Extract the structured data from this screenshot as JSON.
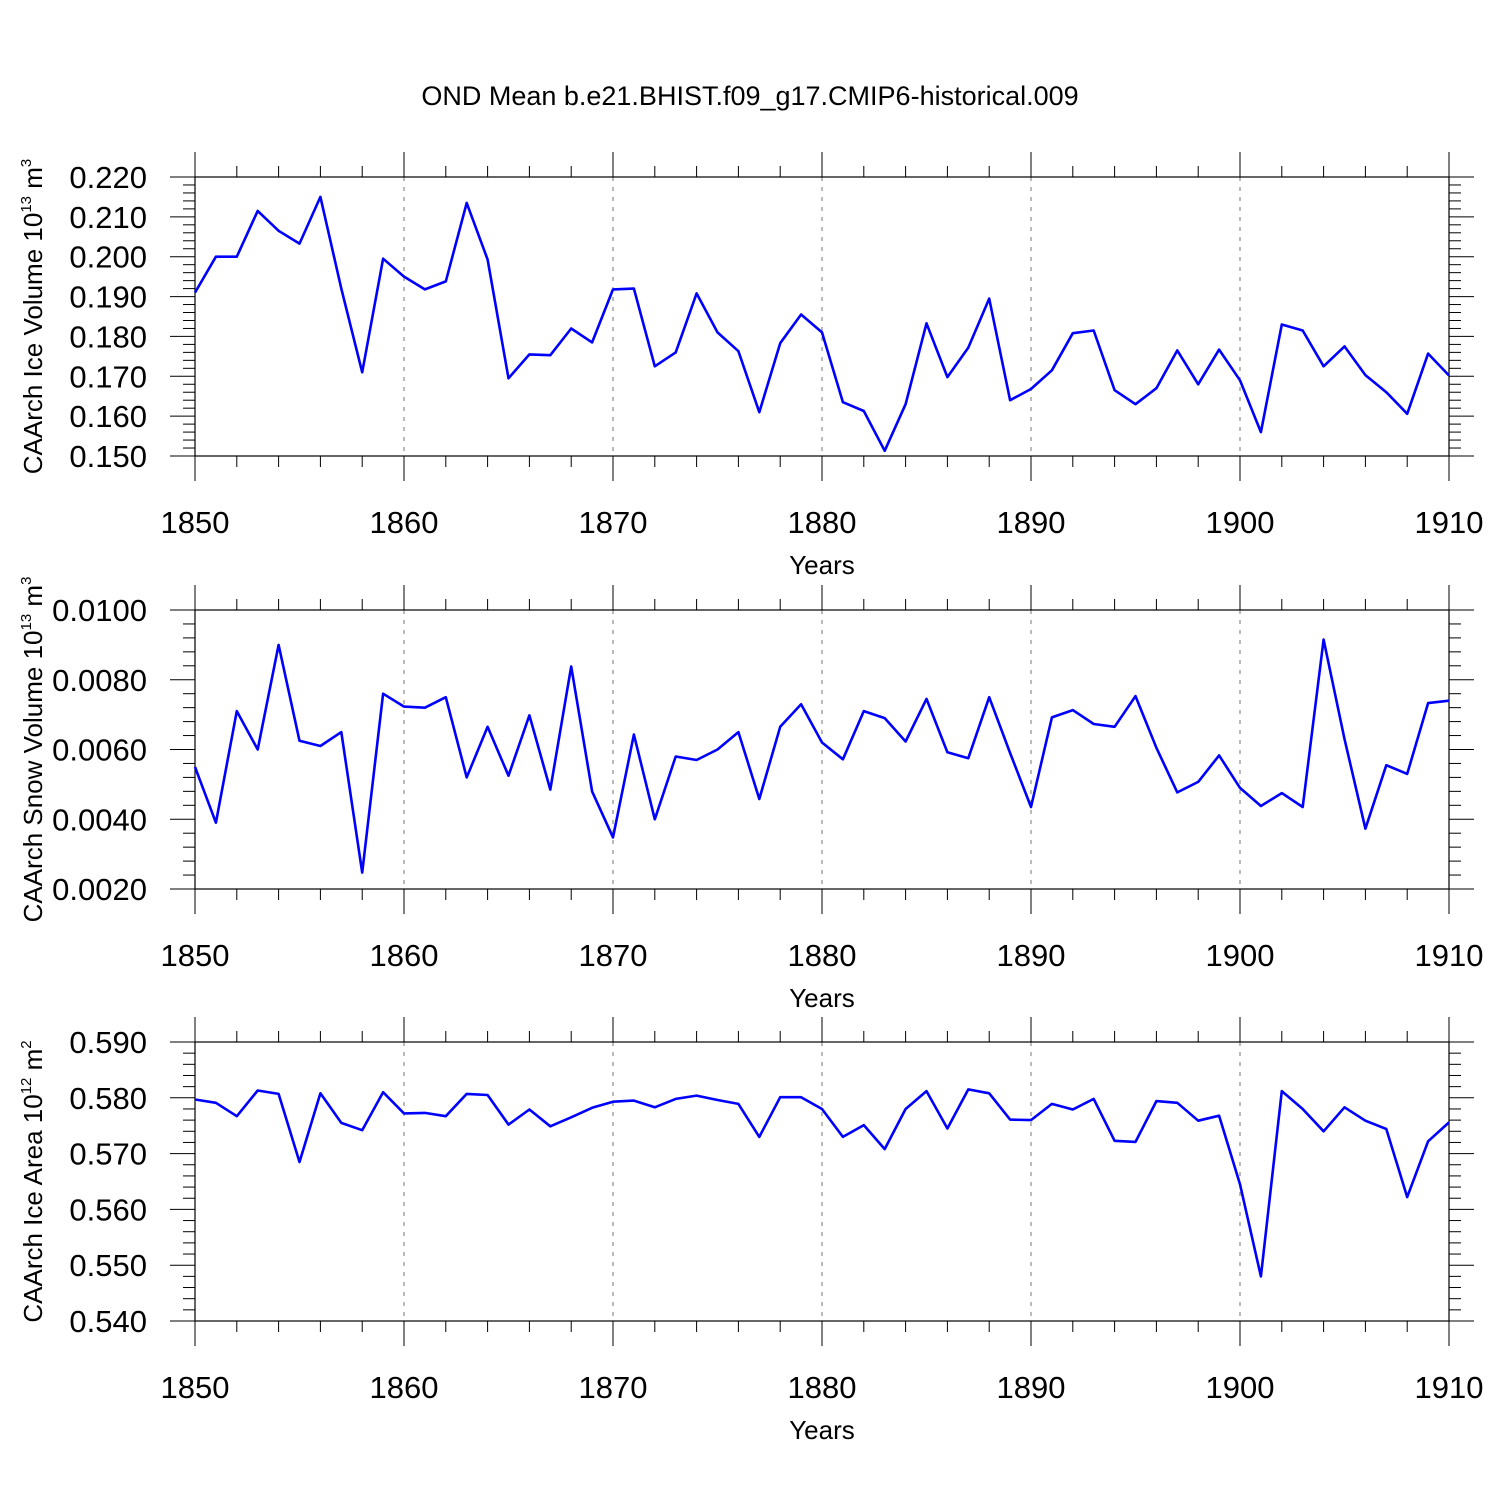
{
  "chart_data": [
    {
      "type": "line",
      "title": "OND Mean b.e21.BHIST.f09_g17.CMIP6-historical.009",
      "ylabel": "CAArch Ice Volume",
      "ylabel_unit": {
        "base": "10",
        "exp": "13",
        "unit": "m",
        "unit_exp": "3"
      },
      "xlabel": "Years",
      "xlim": [
        1850,
        1910
      ],
      "ylim": [
        0.15,
        0.22
      ],
      "xticks": [
        1850,
        1860,
        1870,
        1880,
        1890,
        1900,
        1910
      ],
      "xtick_labels": [
        "1850",
        "1860",
        "1870",
        "1880",
        "1890",
        "1900",
        "1910"
      ],
      "yticks": [
        0.15,
        0.16,
        0.17,
        0.18,
        0.19,
        0.2,
        0.21,
        0.22
      ],
      "ytick_labels": [
        "0.150",
        "0.160",
        "0.170",
        "0.180",
        "0.190",
        "0.200",
        "0.210",
        "0.220"
      ],
      "grid": "vertical dashed at major x ticks",
      "color": "#0000ff",
      "x_start": 1850,
      "values": [
        0.191,
        0.2,
        0.2,
        0.2115,
        0.2065,
        0.2033,
        0.215,
        0.192,
        0.171,
        0.1995,
        0.195,
        0.1918,
        0.1938,
        0.2135,
        0.1993,
        0.1695,
        0.1755,
        0.1753,
        0.182,
        0.1785,
        0.1918,
        0.192,
        0.1725,
        0.176,
        0.1908,
        0.181,
        0.1763,
        0.161,
        0.1783,
        0.1855,
        0.181,
        0.1635,
        0.1613,
        0.1513,
        0.163,
        0.1833,
        0.1698,
        0.1772,
        0.1895,
        0.164,
        0.1668,
        0.1715,
        0.1808,
        0.1815,
        0.1665,
        0.163,
        0.167,
        0.1765,
        0.168,
        0.1767,
        0.169,
        0.156,
        0.183,
        0.1815,
        0.1725,
        0.1775,
        0.1703,
        0.166,
        0.1606,
        0.1757,
        0.1702
      ]
    },
    {
      "type": "line",
      "title": "",
      "ylabel": "CAArch Snow Volume",
      "ylabel_unit": {
        "base": "10",
        "exp": "13",
        "unit": "m",
        "unit_exp": "3"
      },
      "xlabel": "Years",
      "xlim": [
        1850,
        1910
      ],
      "ylim": [
        0.002,
        0.01
      ],
      "xticks": [
        1850,
        1860,
        1870,
        1880,
        1890,
        1900,
        1910
      ],
      "xtick_labels": [
        "1850",
        "1860",
        "1870",
        "1880",
        "1890",
        "1900",
        "1910"
      ],
      "yticks": [
        0.002,
        0.004,
        0.006,
        0.008,
        0.01
      ],
      "ytick_labels": [
        "0.0020",
        "0.0040",
        "0.0060",
        "0.0080",
        "0.0100"
      ],
      "grid": "vertical dashed at major x ticks",
      "color": "#0000ff",
      "x_start": 1850,
      "values": [
        0.0055,
        0.0039,
        0.0071,
        0.006,
        0.009,
        0.00625,
        0.0061,
        0.0065,
        0.00247,
        0.0076,
        0.00723,
        0.0072,
        0.0075,
        0.0052,
        0.00665,
        0.00525,
        0.00698,
        0.00485,
        0.00838,
        0.0048,
        0.00348,
        0.00643,
        0.004,
        0.0058,
        0.0057,
        0.006,
        0.0065,
        0.00458,
        0.00665,
        0.0073,
        0.0062,
        0.00572,
        0.0071,
        0.0069,
        0.00623,
        0.00745,
        0.00592,
        0.00575,
        0.0075,
        0.0059,
        0.00435,
        0.00692,
        0.00713,
        0.00673,
        0.00665,
        0.00753,
        0.00605,
        0.00477,
        0.00507,
        0.00583,
        0.0049,
        0.00438,
        0.00475,
        0.00435,
        0.00915,
        0.0063,
        0.00373,
        0.00555,
        0.0053,
        0.00733,
        0.0074
      ]
    },
    {
      "type": "line",
      "title": "",
      "ylabel": "CAArch Ice Area",
      "ylabel_unit": {
        "base": "10",
        "exp": "12",
        "unit": "m",
        "unit_exp": "2"
      },
      "xlabel": "Years",
      "xlim": [
        1850,
        1910
      ],
      "ylim": [
        0.54,
        0.59
      ],
      "xticks": [
        1850,
        1860,
        1870,
        1880,
        1890,
        1900,
        1910
      ],
      "xtick_labels": [
        "1850",
        "1860",
        "1870",
        "1880",
        "1890",
        "1900",
        "1910"
      ],
      "yticks": [
        0.54,
        0.55,
        0.56,
        0.57,
        0.58,
        0.59
      ],
      "ytick_labels": [
        "0.540",
        "0.550",
        "0.560",
        "0.570",
        "0.580",
        "0.590"
      ],
      "grid": "vertical dashed at major x ticks",
      "color": "#0000ff",
      "x_start": 1850,
      "values": [
        0.5797,
        0.5791,
        0.5767,
        0.5813,
        0.5807,
        0.5685,
        0.5808,
        0.5755,
        0.5742,
        0.581,
        0.5772,
        0.5773,
        0.5767,
        0.5807,
        0.5805,
        0.5752,
        0.5779,
        0.5749,
        0.5765,
        0.5782,
        0.5793,
        0.5795,
        0.5783,
        0.5798,
        0.5804,
        0.5796,
        0.5789,
        0.573,
        0.5801,
        0.5801,
        0.578,
        0.573,
        0.5751,
        0.5708,
        0.578,
        0.5812,
        0.5745,
        0.5815,
        0.5808,
        0.5761,
        0.576,
        0.5789,
        0.5779,
        0.5798,
        0.5723,
        0.5721,
        0.5794,
        0.5791,
        0.5759,
        0.5768,
        0.5645,
        0.548,
        0.5812,
        0.578,
        0.574,
        0.5783,
        0.5759,
        0.5744,
        0.5622,
        0.5722,
        0.5756
      ]
    }
  ]
}
